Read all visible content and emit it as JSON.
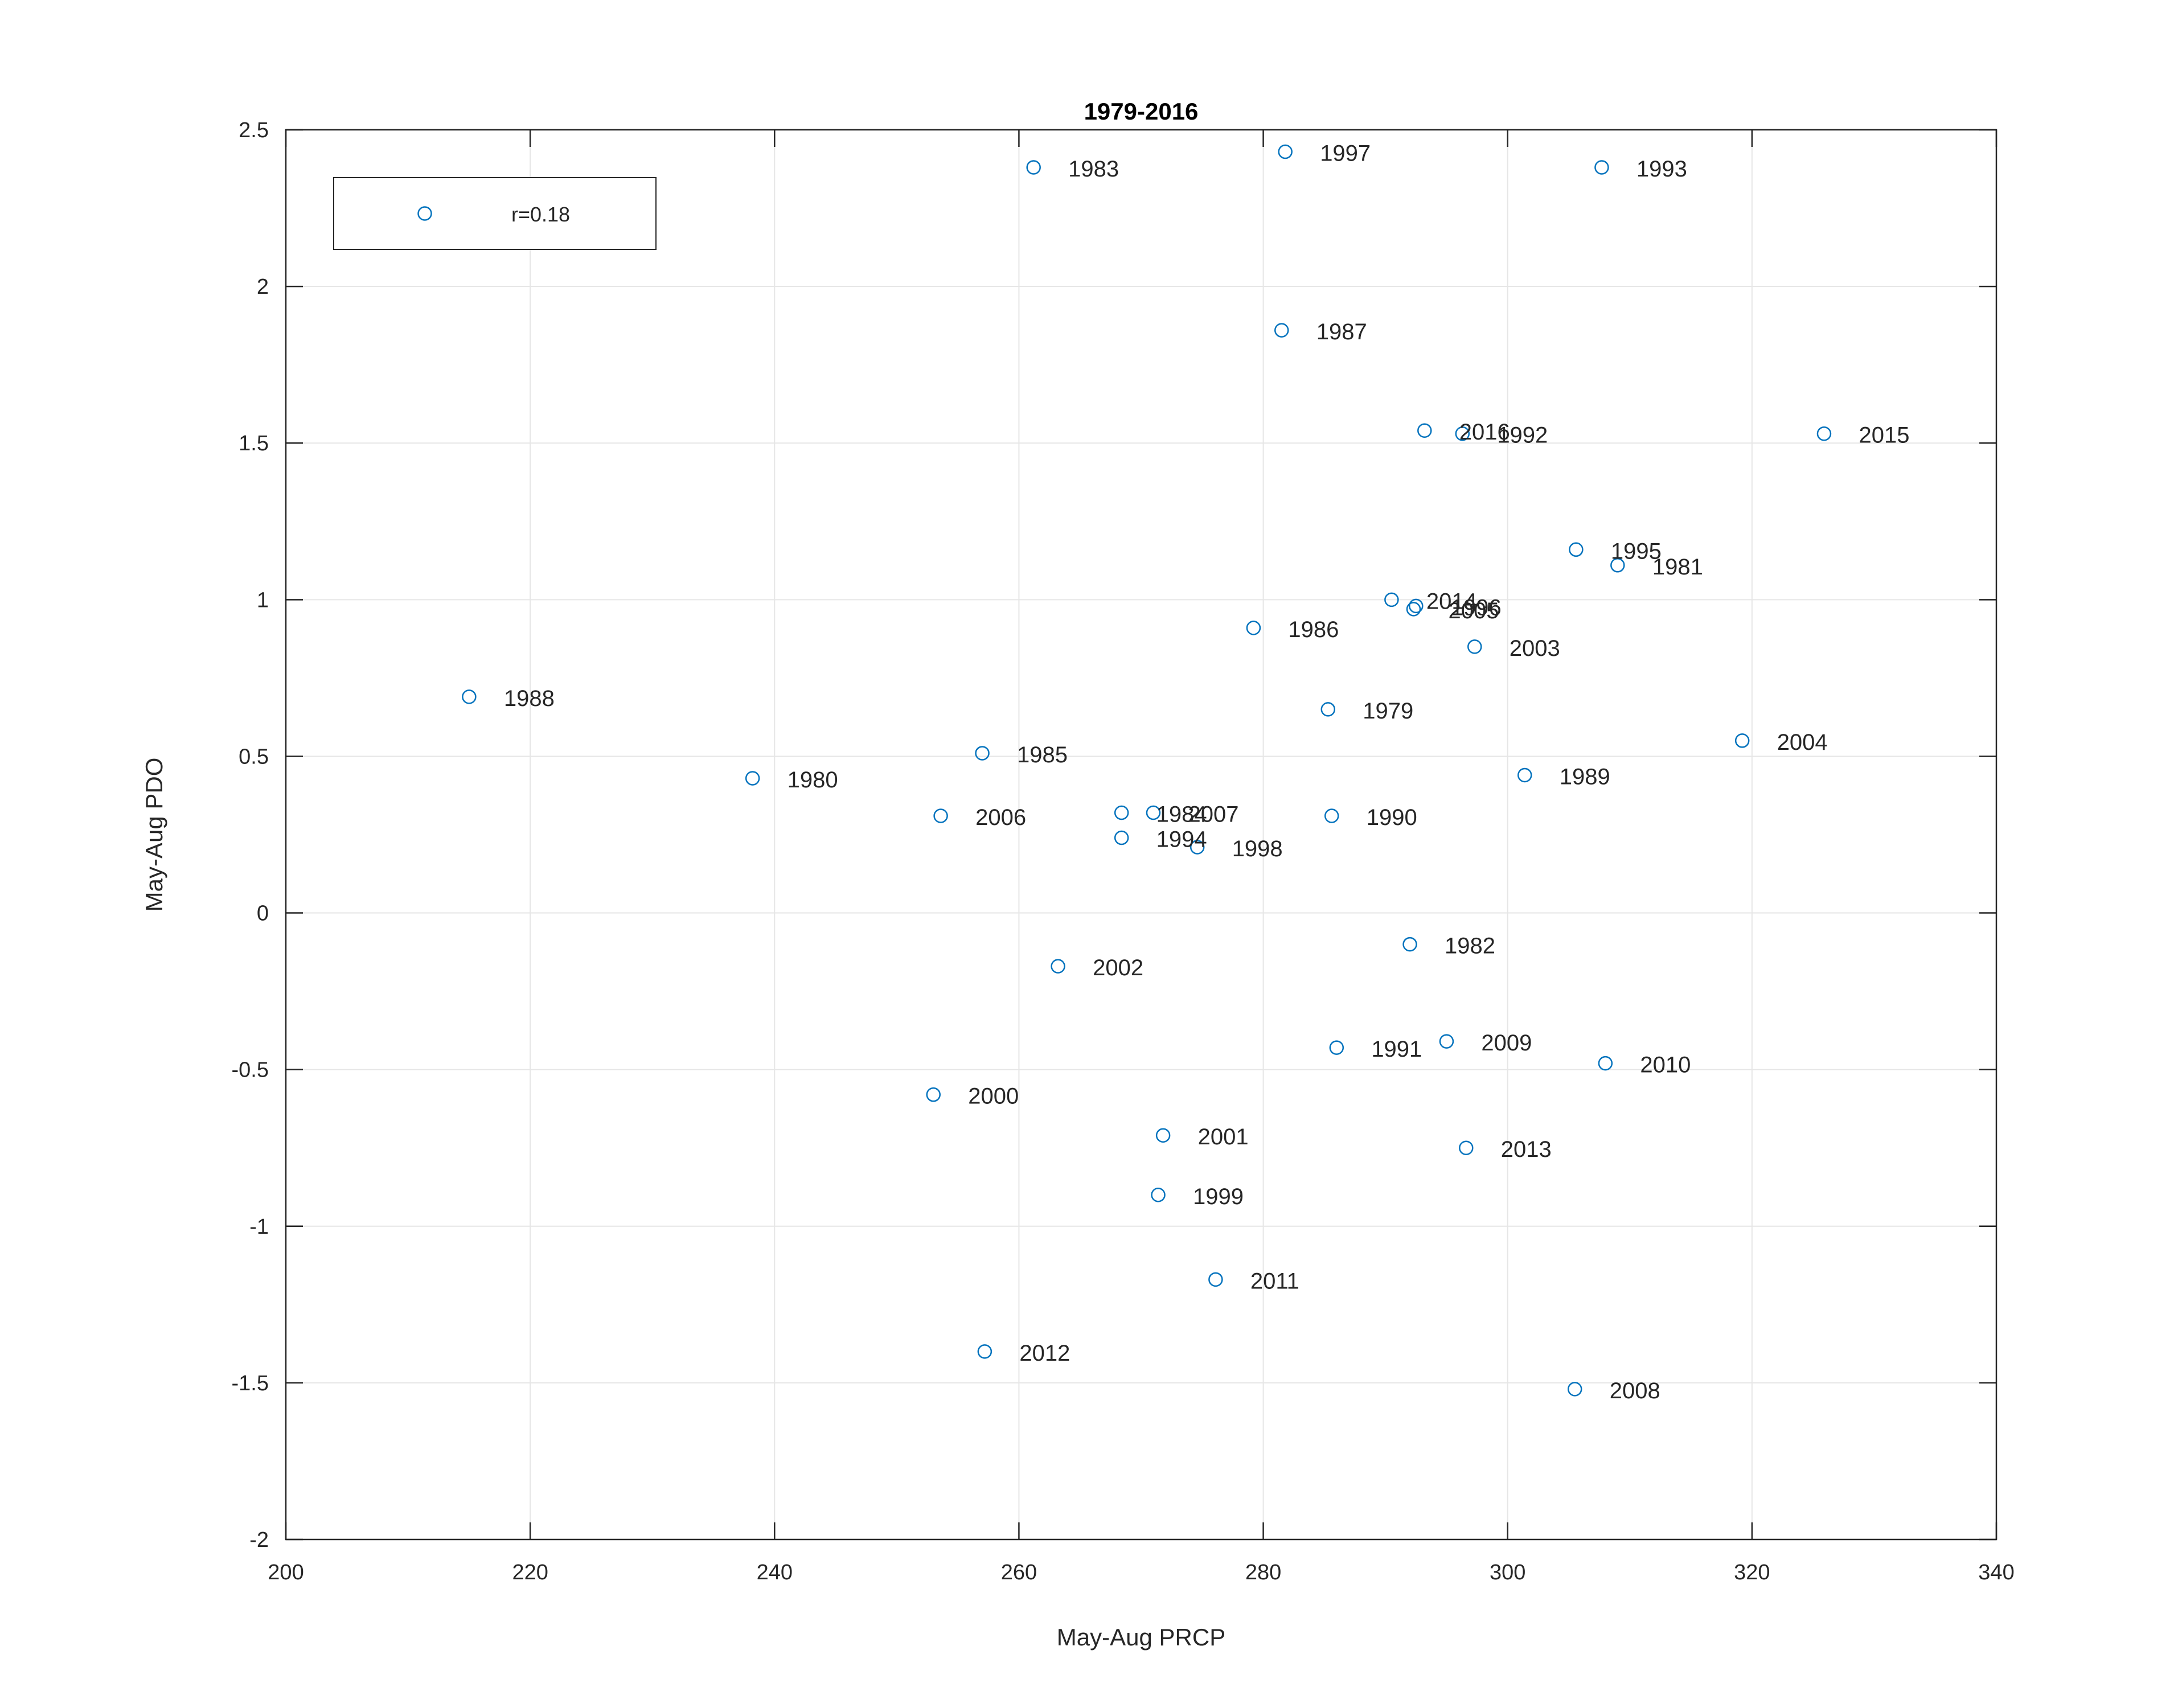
{
  "chart_data": {
    "type": "scatter",
    "title": "1979-2016",
    "xlabel": "May-Aug PRCP",
    "ylabel": "May-Aug PDO",
    "xlim": [
      200,
      340
    ],
    "ylim": [
      -2,
      2.5
    ],
    "xticks": [
      200,
      220,
      240,
      260,
      280,
      300,
      320,
      340
    ],
    "yticks": [
      -2,
      -1.5,
      -1,
      -0.5,
      0,
      0.5,
      1,
      1.5,
      2,
      2.5
    ],
    "grid": true,
    "legend": {
      "label": "r=0.18",
      "placement": "top-left"
    },
    "marker_color": "#0072BD",
    "points": [
      {
        "year": "1979",
        "x": 285.3,
        "y": 0.65
      },
      {
        "year": "1980",
        "x": 238.2,
        "y": 0.43
      },
      {
        "year": "1981",
        "x": 309.0,
        "y": 1.11
      },
      {
        "year": "1982",
        "x": 292.0,
        "y": -0.1
      },
      {
        "year": "1983",
        "x": 261.2,
        "y": 2.38
      },
      {
        "year": "1984",
        "x": 268.4,
        "y": 0.32
      },
      {
        "year": "1985",
        "x": 257.0,
        "y": 0.51
      },
      {
        "year": "1986",
        "x": 279.2,
        "y": 0.91
      },
      {
        "year": "1987",
        "x": 281.5,
        "y": 1.86
      },
      {
        "year": "1988",
        "x": 215.0,
        "y": 0.69
      },
      {
        "year": "1989",
        "x": 301.4,
        "y": 0.44
      },
      {
        "year": "1990",
        "x": 285.6,
        "y": 0.31
      },
      {
        "year": "1991",
        "x": 286.0,
        "y": -0.43
      },
      {
        "year": "1992",
        "x": 296.3,
        "y": 1.53
      },
      {
        "year": "1993",
        "x": 307.7,
        "y": 2.38
      },
      {
        "year": "1994",
        "x": 268.4,
        "y": 0.24
      },
      {
        "year": "1995",
        "x": 305.6,
        "y": 1.16
      },
      {
        "year": "1996",
        "x": 292.5,
        "y": 0.98
      },
      {
        "year": "1997",
        "x": 281.8,
        "y": 2.43
      },
      {
        "year": "1998",
        "x": 274.6,
        "y": 0.21
      },
      {
        "year": "1999",
        "x": 271.4,
        "y": -0.9
      },
      {
        "year": "2000",
        "x": 253.0,
        "y": -0.58
      },
      {
        "year": "2001",
        "x": 271.8,
        "y": -0.71
      },
      {
        "year": "2002",
        "x": 263.2,
        "y": -0.17
      },
      {
        "year": "2003",
        "x": 297.3,
        "y": 0.85
      },
      {
        "year": "2004",
        "x": 319.2,
        "y": 0.55
      },
      {
        "year": "2005",
        "x": 292.3,
        "y": 0.97
      },
      {
        "year": "2006",
        "x": 253.6,
        "y": 0.31
      },
      {
        "year": "2007",
        "x": 271.0,
        "y": 0.32
      },
      {
        "year": "2008",
        "x": 305.5,
        "y": -1.52
      },
      {
        "year": "2009",
        "x": 295.0,
        "y": -0.41
      },
      {
        "year": "2010",
        "x": 308.0,
        "y": -0.48
      },
      {
        "year": "2011",
        "x": 276.1,
        "y": -1.17
      },
      {
        "year": "2012",
        "x": 257.2,
        "y": -1.4
      },
      {
        "year": "2013",
        "x": 296.6,
        "y": -0.75
      },
      {
        "year": "2014",
        "x": 290.5,
        "y": 1.0
      },
      {
        "year": "2015",
        "x": 325.9,
        "y": 1.53
      },
      {
        "year": "2016",
        "x": 293.2,
        "y": 1.54
      }
    ]
  }
}
